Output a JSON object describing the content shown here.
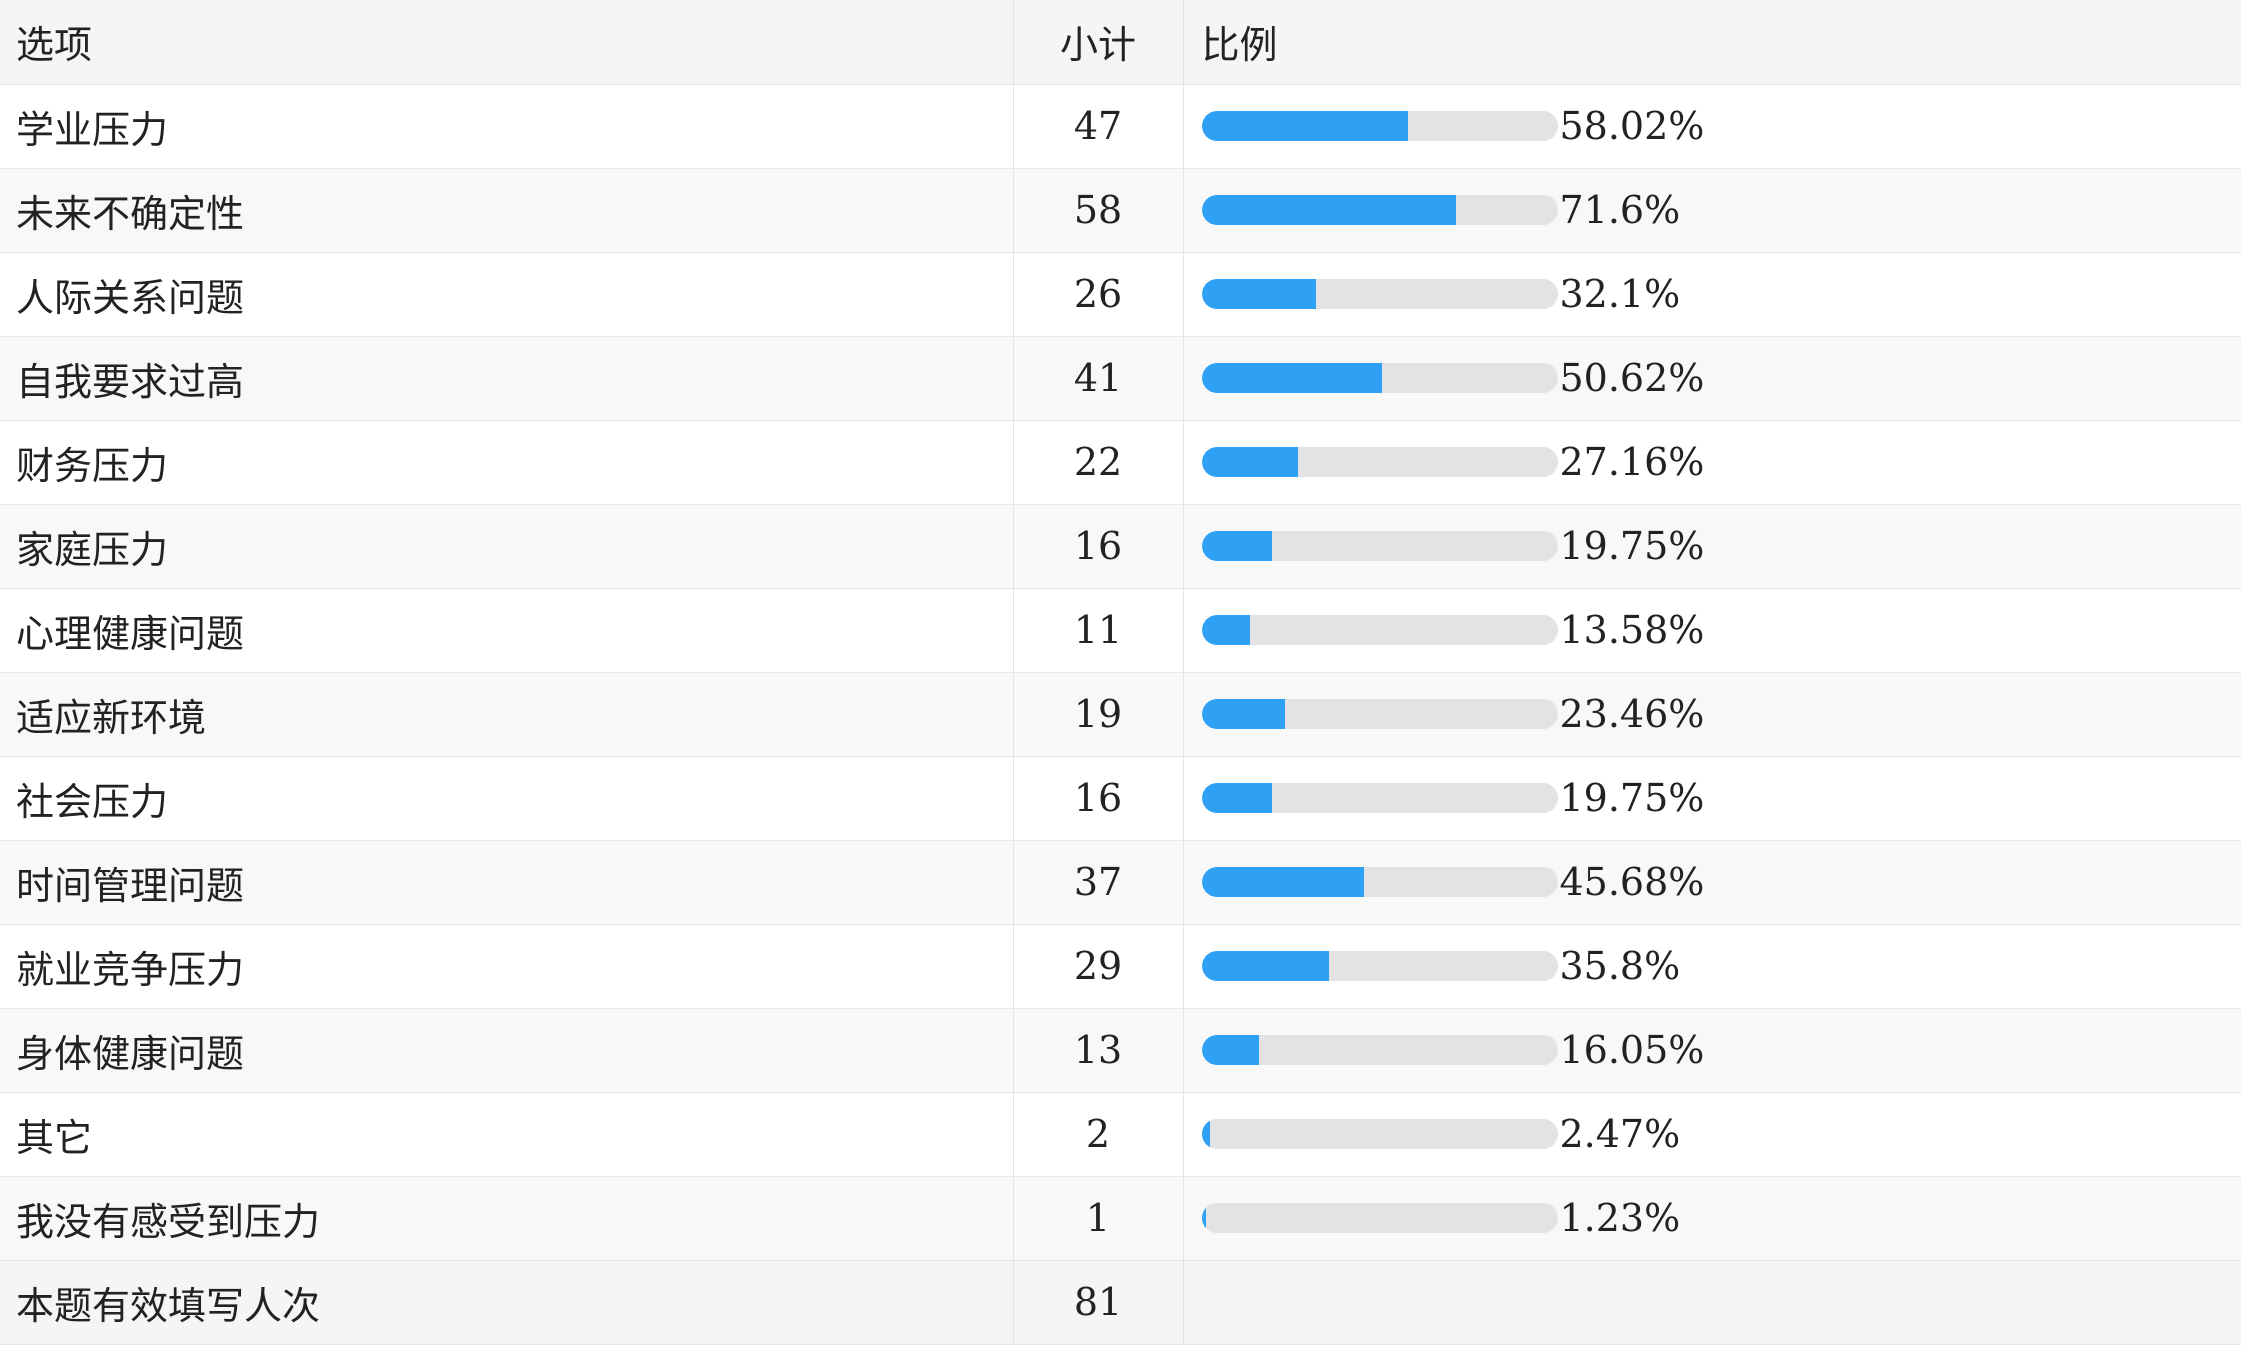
{
  "table": {
    "headers": {
      "option": "选项",
      "count": "小计",
      "ratio": "比例"
    },
    "rows": [
      {
        "option": "学业压力",
        "count": "47",
        "percent_text": "58.02%",
        "fraction": 0.5802
      },
      {
        "option": "未来不确定性",
        "count": "58",
        "percent_text": "71.6%",
        "fraction": 0.716
      },
      {
        "option": "人际关系问题",
        "count": "26",
        "percent_text": "32.1%",
        "fraction": 0.321
      },
      {
        "option": "自我要求过高",
        "count": "41",
        "percent_text": "50.62%",
        "fraction": 0.5062
      },
      {
        "option": "财务压力",
        "count": "22",
        "percent_text": "27.16%",
        "fraction": 0.2716
      },
      {
        "option": "家庭压力",
        "count": "16",
        "percent_text": "19.75%",
        "fraction": 0.1975
      },
      {
        "option": "心理健康问题",
        "count": "11",
        "percent_text": "13.58%",
        "fraction": 0.1358
      },
      {
        "option": "适应新环境",
        "count": "19",
        "percent_text": "23.46%",
        "fraction": 0.2346
      },
      {
        "option": "社会压力",
        "count": "16",
        "percent_text": "19.75%",
        "fraction": 0.1975
      },
      {
        "option": "时间管理问题",
        "count": "37",
        "percent_text": "45.68%",
        "fraction": 0.4568
      },
      {
        "option": "就业竞争压力",
        "count": "29",
        "percent_text": "35.8%",
        "fraction": 0.358
      },
      {
        "option": "身体健康问题",
        "count": "13",
        "percent_text": "16.05%",
        "fraction": 0.1605
      },
      {
        "option": "其它",
        "count": "2",
        "percent_text": "2.47%",
        "fraction": 0.0247
      },
      {
        "option": "我没有感受到压力",
        "count": "1",
        "percent_text": "1.23%",
        "fraction": 0.0123
      }
    ],
    "footer": {
      "label": "本题有效填写人次",
      "count": "81"
    }
  },
  "colors": {
    "bar_fill": "#2ea1f5",
    "bar_track": "#e3e3e5",
    "header_bg": "#f5f5f5"
  }
}
